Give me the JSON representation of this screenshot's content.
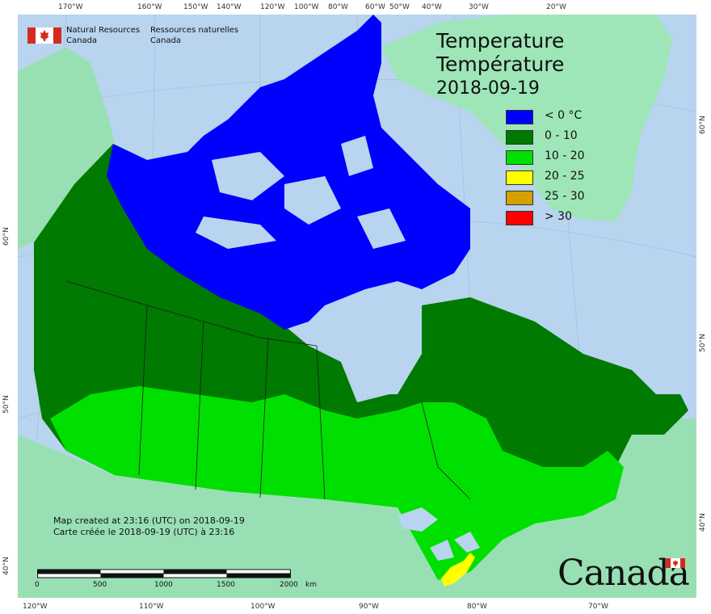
{
  "header": {
    "org_en_line1": "Natural Resources",
    "org_en_line2": "Canada",
    "org_fr_line1": "Ressources naturelles",
    "org_fr_line2": "Canada"
  },
  "title": {
    "line1": "Temperature",
    "line2": "Température",
    "date": "2018-09-19"
  },
  "legend": {
    "items": [
      {
        "label": "< 0 °C",
        "color": "#0000ff"
      },
      {
        "label": "0 - 10",
        "color": "#007a00"
      },
      {
        "label": "10 - 20",
        "color": "#00e000"
      },
      {
        "label": "20 - 25",
        "color": "#ffff00"
      },
      {
        "label": "25 - 30",
        "color": "#d6a000"
      },
      {
        "label": "> 30",
        "color": "#ff0000"
      }
    ]
  },
  "credit": {
    "line1": "Map created at 23:16 (UTC) on 2018-09-19",
    "line2": "Carte créée le 2018-09-19 (UTC) à 23:16"
  },
  "scale": {
    "labels": [
      "0",
      "500",
      "1000",
      "1500",
      "2000",
      "km"
    ]
  },
  "ticks": {
    "top": [
      "170°W",
      "160°W",
      "150°W",
      "140°W",
      "120°W",
      "100°W",
      "80°W",
      "60°W",
      "50°W",
      "40°W",
      "30°W",
      "20°W"
    ],
    "bottom": [
      "120°W",
      "110°W",
      "100°W",
      "90°W",
      "80°W",
      "70°W"
    ],
    "left": [
      "60°N",
      "50°N",
      "40°N"
    ],
    "right": [
      "60°N",
      "50°N",
      "40°N"
    ]
  },
  "wordmark": "Canada",
  "colors": {
    "ocean": "#b8d4ee",
    "foreign_land": "#98e0b4",
    "greenland": "#9ee6b8"
  }
}
